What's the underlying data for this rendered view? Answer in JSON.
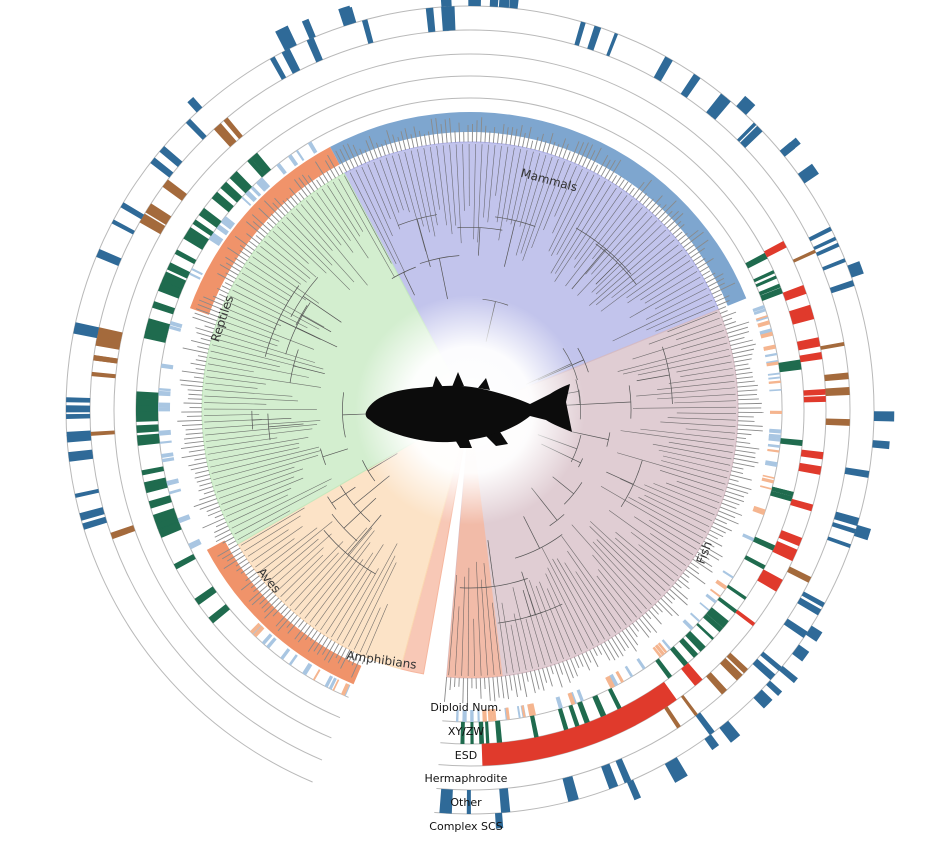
{
  "colors": {
    "mammals": "#aeb0e6",
    "reptiles": "#c4e8bf",
    "aves": "#fbd9b4",
    "amphibians": "#f6b69e",
    "fish": "#d6bcc4",
    "xyzw_band_mammals": "#7ea6cf",
    "xyzw_band_orange": "#f0936a",
    "xyzw_band_blue": "#a9c6e2",
    "xyzw_band_orange_light": "#f5b58f",
    "esd": "#1f6b4e",
    "hermaphrodite": "#e03a2c",
    "other": "#a46a3c",
    "complex_scs": "#2f6a98",
    "tree": "#555555",
    "diploid": "#8a8a8a",
    "silhouette": "#0c0c0c"
  },
  "icon": "fish-silhouette-icon",
  "clades": [
    {
      "key": "mammals",
      "label": "Mammals"
    },
    {
      "key": "reptiles",
      "label": "Reptiles"
    },
    {
      "key": "aves",
      "label": "Aves"
    },
    {
      "key": "amphibians",
      "label": "Amphibians"
    },
    {
      "key": "fish",
      "label": "Fish"
    }
  ],
  "rings": [
    {
      "key": "diploid",
      "label": "Diploid Num."
    },
    {
      "key": "xyzw",
      "label": "XY/ZW"
    },
    {
      "key": "esd",
      "label": "ESD"
    },
    {
      "key": "hermaphrodite",
      "label": "Hermaphrodite"
    },
    {
      "key": "other",
      "label": "Other"
    },
    {
      "key": "complex",
      "label": "Complex SCS"
    }
  ]
}
